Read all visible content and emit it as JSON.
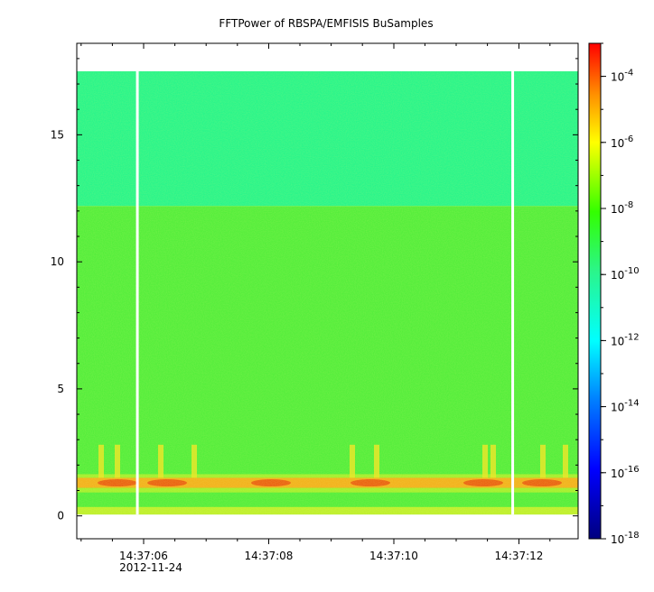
{
  "chart_data": {
    "type": "heatmap",
    "title": "FFTPower of RBSPA/EMFISIS  BuSamples",
    "xlabel": "",
    "ylabel": "",
    "x_date_label": "2012-11-24",
    "x_ticks": [
      "14:37:06",
      "14:37:08",
      "14:37:10",
      "14:37:12"
    ],
    "y_ticks": [
      0,
      5,
      10,
      15
    ],
    "ylim": [
      -0.9,
      18.6
    ],
    "y_data_range": [
      0.05,
      17.5
    ],
    "colorbar": {
      "scale": "log",
      "range": [
        1e-18,
        0.001
      ],
      "ticks": [
        {
          "value": 0.0001,
          "mantissa": "10",
          "exponent": "-4"
        },
        {
          "value": 1e-06,
          "mantissa": "10",
          "exponent": "-6"
        },
        {
          "value": 1e-08,
          "mantissa": "10",
          "exponent": "-8"
        },
        {
          "value": 1e-10,
          "mantissa": "10",
          "exponent": "-10"
        },
        {
          "value": 1e-12,
          "mantissa": "10",
          "exponent": "-12"
        },
        {
          "value": 1e-14,
          "mantissa": "10",
          "exponent": "-14"
        },
        {
          "value": 1e-16,
          "mantissa": "10",
          "exponent": "-16"
        },
        {
          "value": 1e-18,
          "mantissa": "10",
          "exponent": "-18"
        }
      ],
      "colors": [
        "#00007f",
        "#0000ff",
        "#007fff",
        "#00ffff",
        "#7fff7f",
        "#ffff00",
        "#ff7f00",
        "#ff0000"
      ]
    },
    "bands": [
      {
        "y_from": 12.2,
        "y_to": 17.5,
        "color": "#2af58a",
        "level": "~1e-12"
      },
      {
        "y_from": 0.05,
        "y_to": 12.2,
        "color": "#55ee3c",
        "level": "~1e-10"
      },
      {
        "y_from": 1.1,
        "y_to": 1.5,
        "color": "#f3b21e",
        "level": "~1e-7"
      }
    ],
    "gaps_time": [
      "14:37:05.9",
      "14:37:11.9"
    ],
    "grid": false,
    "legend": "colorbar-right"
  }
}
